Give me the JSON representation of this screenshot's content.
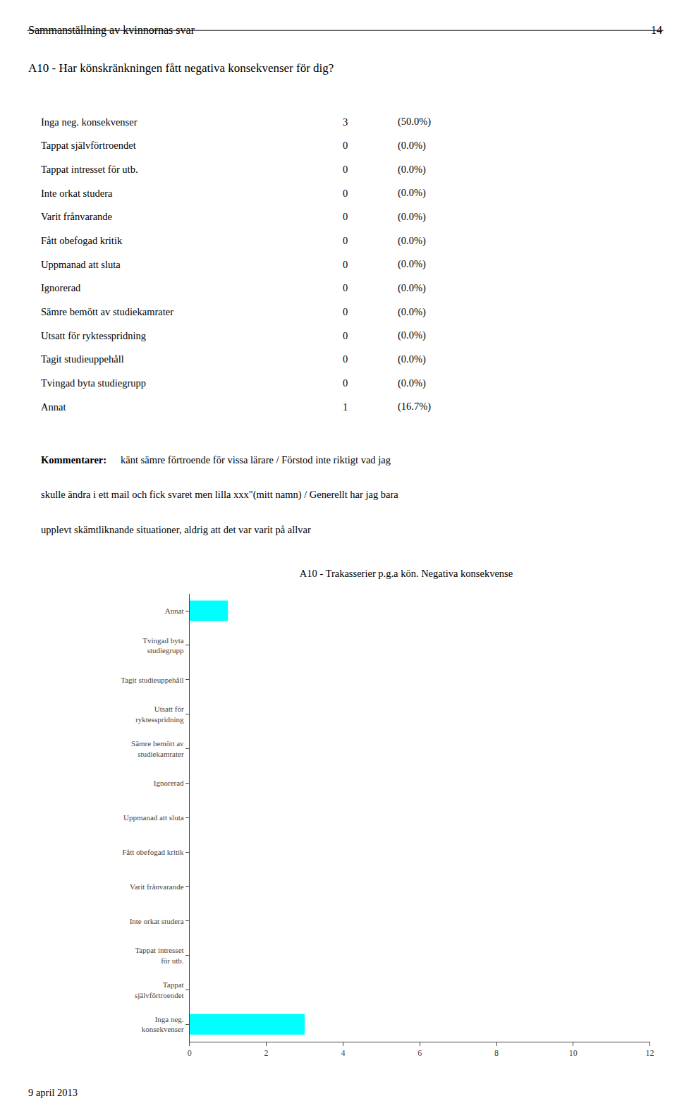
{
  "page_header": "Sammanställning av kvinnornas svar",
  "page_number": "14",
  "question": "A10 - Har könskränkningen fått negativa konsekvenser för dig?",
  "table": [
    {
      "label": "Inga neg. konsekvenser",
      "count": 3,
      "share": "(50.0%)"
    },
    {
      "label": "Tappat självförtroendet",
      "count": 0,
      "share": "(0.0%)"
    },
    {
      "label": "Tappat intresset för utb.",
      "count": 0,
      "share": "(0.0%)"
    },
    {
      "label": "Inte orkat studera",
      "count": 0,
      "share": "(0.0%)"
    },
    {
      "label": "Varit frånvarande",
      "count": 0,
      "share": "(0.0%)"
    },
    {
      "label": "Fått obefogad kritik",
      "count": 0,
      "share": "(0.0%)"
    },
    {
      "label": "Uppmanad att sluta",
      "count": 0,
      "share": "(0.0%)"
    },
    {
      "label": "Ignorerad",
      "count": 0,
      "share": "(0.0%)"
    },
    {
      "label": "Sämre bemött av studiekamrater",
      "count": 0,
      "share": "(0.0%)"
    },
    {
      "label": "Utsatt för ryktesspridning",
      "count": 0,
      "share": "(0.0%)"
    },
    {
      "label": "Tagit studieuppehåll",
      "count": 0,
      "share": "(0.0%)"
    },
    {
      "label": "Tvingad byta studiegrupp",
      "count": 0,
      "share": "(0.0%)"
    },
    {
      "label": "Annat",
      "count": 1,
      "share": "(16.7%)"
    }
  ],
  "comment_label": "Kommentarer:",
  "comment_lines": [
    "känt sämre förtroende för vissa lärare / Förstod inte riktigt vad jag",
    "skulle ändra i ett mail och fick svaret men lilla xxx\"(mitt namn) / Generellt har jag bara",
    "upplevt skämtliknande situationer, aldrig att det var varit på allvar"
  ],
  "footer": "9 april 2013",
  "chart_data": {
    "type": "bar",
    "orientation": "horizontal",
    "title": "A10 - Trakasserier p.g.a kön. Negativa konsekvense",
    "categories": [
      "Annat",
      "Tvingad byta\nstudiegrupp",
      "Tagit studieuppehåll",
      "Utsatt för\nryktesspridning",
      "Sämre bemött av\nstudiekamrater",
      "Ignorerad",
      "Uppmanad att sluta",
      "Fått obefogad kritik",
      "Varit frånvarande",
      "Inte orkat studera",
      "Tappat intresset\nför utb.",
      "Tappat\nsjälvförtroendet",
      "Inga neg.\nkonsekvenser"
    ],
    "values": [
      1,
      0,
      0,
      0,
      0,
      0,
      0,
      0,
      0,
      0,
      0,
      0,
      3
    ],
    "color": "#00FFFF",
    "xlim": [
      0,
      12
    ],
    "xticks": [
      0,
      2,
      4,
      6,
      8,
      10,
      12
    ],
    "grid": false
  }
}
